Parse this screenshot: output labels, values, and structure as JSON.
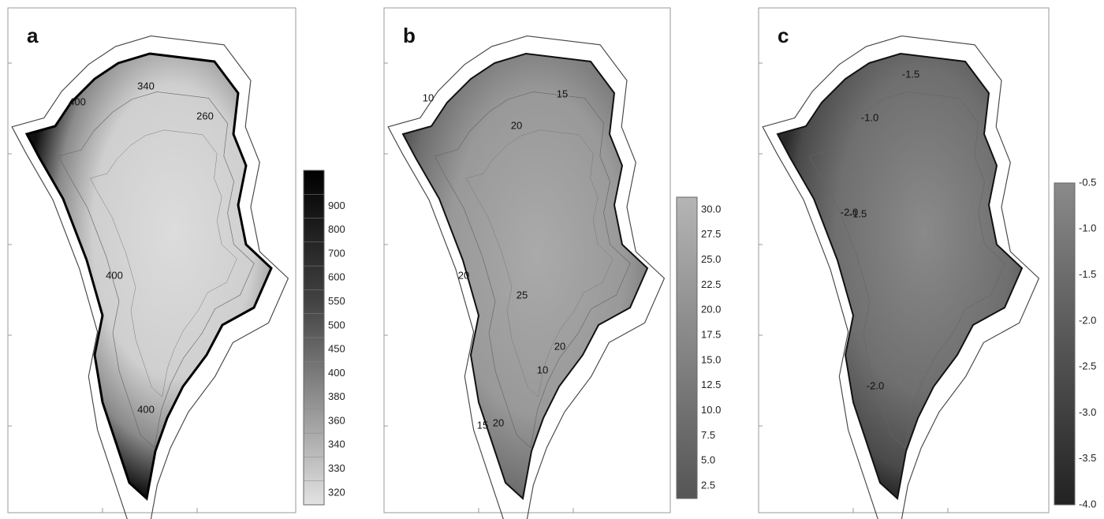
{
  "panels": [
    {
      "label": "a",
      "colorbar": [
        "900",
        "800",
        "700",
        "600",
        "550",
        "500",
        "450",
        "400",
        "380",
        "360",
        "340",
        "330",
        "320"
      ],
      "contours": [
        "340",
        "400",
        "260",
        "400",
        "400"
      ]
    },
    {
      "label": "b",
      "colorbar": [
        "30.0",
        "27.5",
        "25.0",
        "22.5",
        "20.0",
        "17.5",
        "15.0",
        "12.5",
        "10.0",
        "7.5",
        "5.0",
        "2.5"
      ],
      "contours": [
        "10",
        "15",
        "20",
        "20",
        "25",
        "20",
        "10",
        "15",
        "20"
      ]
    },
    {
      "label": "c",
      "colorbar": [
        "-0.5",
        "-1.0",
        "-1.5",
        "-2.0",
        "-2.5",
        "-3.0",
        "-3.5",
        "-4.0"
      ],
      "contours": [
        "-1.5",
        "-1.0",
        "-2.0",
        "-1.5",
        "-2.0"
      ]
    }
  ]
}
